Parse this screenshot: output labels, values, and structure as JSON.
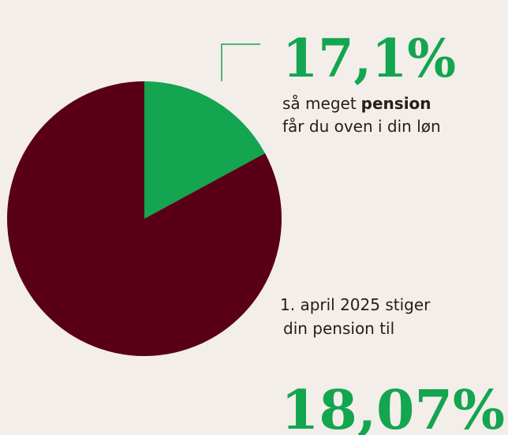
{
  "chart_data": {
    "type": "pie",
    "values": [
      17.1,
      82.9
    ],
    "value_labels": [
      "17,1%",
      null
    ],
    "colors": [
      "#13a54f",
      "#5a0016"
    ],
    "caption_lines": [
      [
        {
          "text": "så meget"
        },
        {
          "text": "pension",
          "bold": true
        }
      ],
      [
        {
          "text": "får du oven i din løn"
        }
      ]
    ],
    "footnote_lines": [
      "1. april 2025 stiger",
      "din pension til"
    ],
    "highlight": "18,07%"
  }
}
